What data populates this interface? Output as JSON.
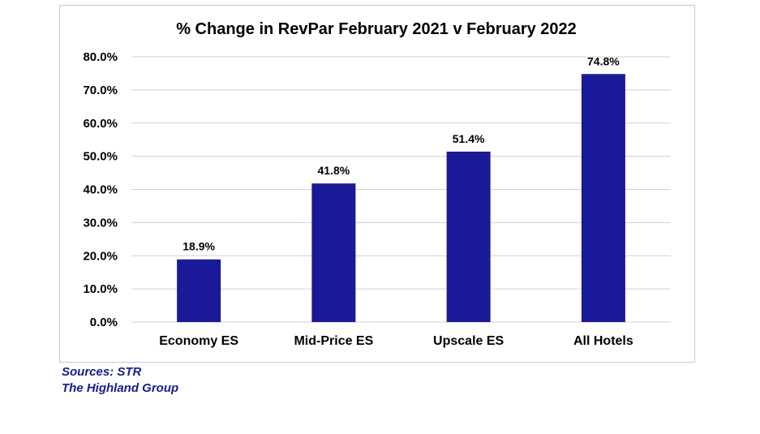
{
  "chart_data": {
    "type": "bar",
    "title": "% Change in RevPar February 2021 v February 2022",
    "categories": [
      "Economy ES",
      "Mid-Price ES",
      "Upscale ES",
      "All Hotels"
    ],
    "values": [
      18.9,
      41.8,
      51.4,
      74.8
    ],
    "data_labels": [
      "18.9%",
      "41.8%",
      "51.4%",
      "74.8%"
    ],
    "xlabel": "",
    "ylabel": "",
    "ylim": [
      0,
      80
    ],
    "yticks": [
      0,
      10,
      20,
      30,
      40,
      50,
      60,
      70,
      80
    ],
    "ytick_labels": [
      "0.0%",
      "10.0%",
      "20.0%",
      "30.0%",
      "40.0%",
      "50.0%",
      "60.0%",
      "70.0%",
      "80.0%"
    ],
    "grid": true,
    "bar_color": "#1a1a99"
  },
  "sources": {
    "line1": "Sources: STR",
    "line2": "The Highland Group"
  }
}
